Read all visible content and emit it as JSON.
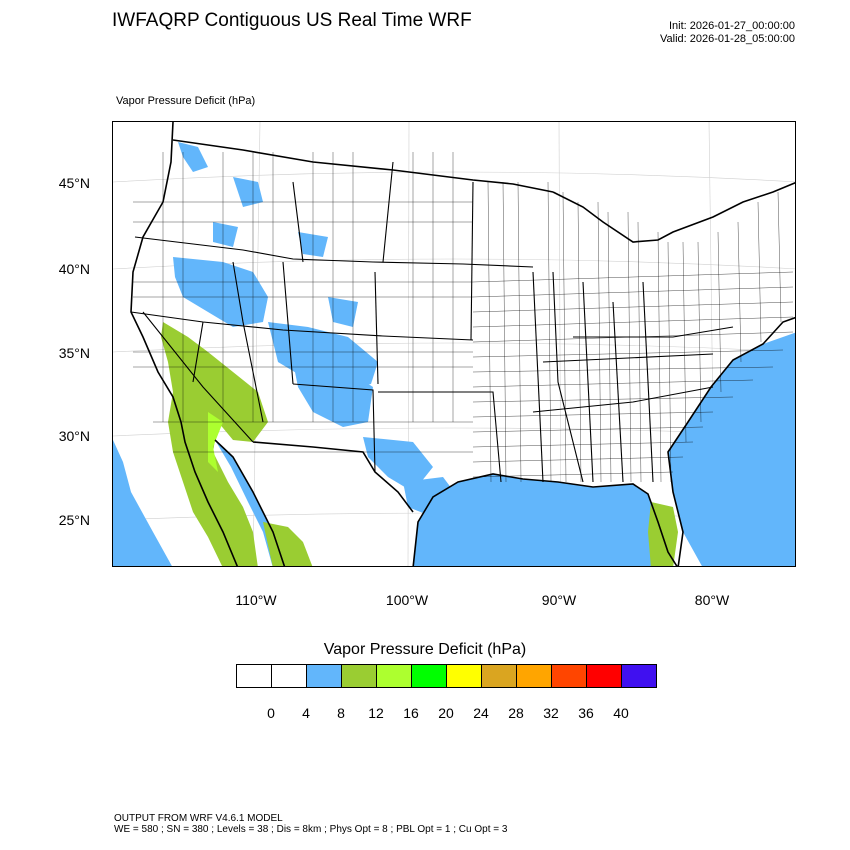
{
  "header": {
    "title": "IWFAQRP Contiguous US Real Time WRF",
    "init": "Init: 2026-01-27_00:00:00",
    "valid": "Valid: 2026-01-28_05:00:00"
  },
  "field_label": "Vapor Pressure Deficit   (hPa)",
  "map": {
    "lat_labels": [
      "45°N",
      "40°N",
      "35°N",
      "30°N",
      "25°N"
    ],
    "lon_labels": [
      "110°W",
      "100°W",
      "90°W",
      "80°W"
    ],
    "ocean_color": "#62b6fb",
    "land_color": "#ffffff"
  },
  "legend": {
    "title": "Vapor Pressure Deficit  (hPa)",
    "colors": [
      "#ffffff",
      "#ffffff",
      "#62b6fb",
      "#9acd32",
      "#adff2f",
      "#00ff00",
      "#ffff00",
      "#daa520",
      "#ffa500",
      "#ff4500",
      "#ff0000",
      "#4010f0"
    ],
    "ticks": [
      "0",
      "4",
      "8",
      "12",
      "16",
      "20",
      "24",
      "28",
      "32",
      "36",
      "40"
    ]
  },
  "footer": {
    "line1": "OUTPUT FROM WRF V4.6.1 MODEL",
    "line2": "WE = 580 ; SN = 380 ; Levels = 38 ; Dis = 8km ; Phys Opt = 8 ; PBL Opt = 1 ; Cu Opt = 3"
  }
}
